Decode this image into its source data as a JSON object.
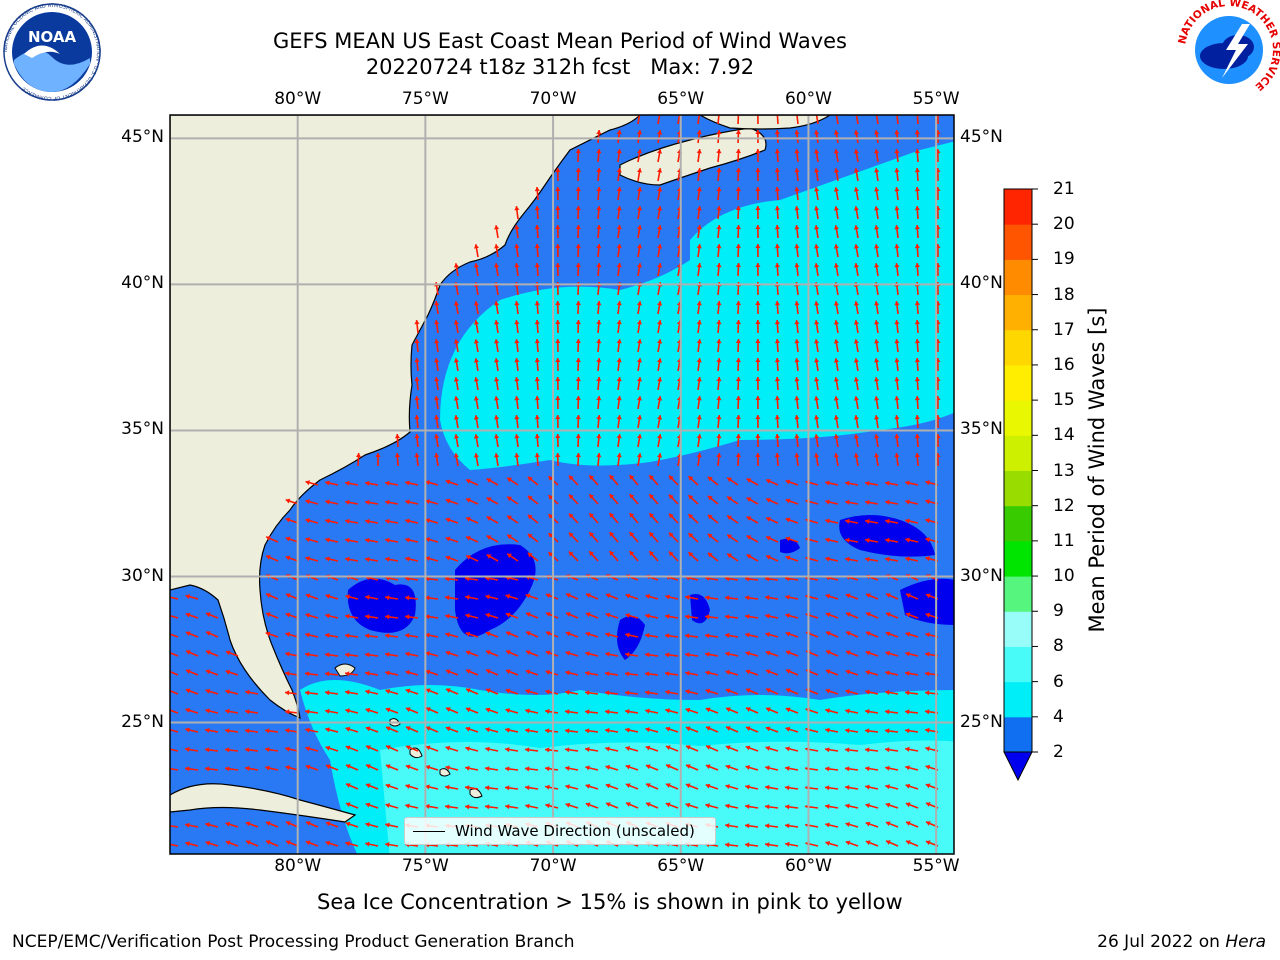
{
  "header": {
    "title_line1": "GEFS MEAN US East Coast Mean Period of Wind Waves",
    "title_line2": "20220724 t18z 312h fcst   Max: 7.92"
  },
  "logos": {
    "noaa_text": "NOAA",
    "noaa_ring_text": "NATIONAL OCEANIC AND ATMOSPHERIC ADMINISTRATION · U.S. DEPARTMENT OF COMMERCE",
    "nws_ring_text": "NATIONAL WEATHER SERVICE"
  },
  "map": {
    "lon_ticks": [
      "80°W",
      "75°W",
      "70°W",
      "65°W",
      "60°W",
      "55°W"
    ],
    "lon_values": [
      -80,
      -75,
      -70,
      -65,
      -60,
      -55
    ],
    "lat_ticks": [
      "45°N",
      "40°N",
      "35°N",
      "30°N",
      "25°N"
    ],
    "lat_values": [
      45,
      40,
      35,
      30,
      25
    ],
    "extent": {
      "lon_min": -85,
      "lon_max": -54.3,
      "lat_min": 20.5,
      "lat_max": 45.8
    },
    "legend_label": "Wind Wave Direction (unscaled)",
    "arrow_color": "#ff1a00",
    "land_color": "#eeeedc",
    "grid_color": "#b0b0b0"
  },
  "colorbar": {
    "label": "Mean Period of Wind Waves [s]",
    "tick_labels": [
      "21",
      "20",
      "19",
      "18",
      "17",
      "16",
      "15",
      "14",
      "13",
      "12",
      "11",
      "10",
      "9",
      "8",
      "6",
      "4",
      "2"
    ],
    "levels": [
      2,
      4,
      6,
      8,
      9,
      10,
      11,
      12,
      13,
      14,
      15,
      16,
      17,
      18,
      19,
      20,
      21
    ],
    "colors": [
      "#0f6ff0",
      "#00eef7",
      "#48fbf9",
      "#98fcf9",
      "#56f57e",
      "#00e500",
      "#38cc00",
      "#99dd00",
      "#ccf000",
      "#e9f800",
      "#ffee00",
      "#ffd700",
      "#ffb000",
      "#ff8c00",
      "#ff5500",
      "#ff2500"
    ],
    "under_color": "#0000ee",
    "max_value": 7.92
  },
  "notes": {
    "sea_ice": "Sea Ice Concentration > 15% is shown in pink to yellow",
    "footer_left": "NCEP/EMC/Verification Post Processing Product Generation Branch",
    "footer_date": "26 Jul 2022 on",
    "footer_host": "Hera"
  }
}
